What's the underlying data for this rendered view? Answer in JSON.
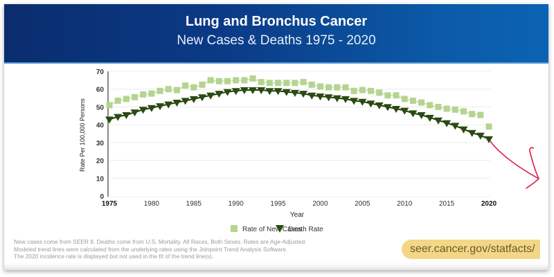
{
  "header": {
    "title": "Lung and Bronchus Cancer",
    "subtitle": "New Cases & Deaths 1975 - 2020"
  },
  "footnote": {
    "line1": "New cases come from SEER 8. Deaths come from U.S. Mortality. All Races, Both Sexes. Rates are Age-Adjusted.",
    "line2": "Modeled trend lines were calculated from the underlying rates using the Joinpoint Trend Analysis Software.",
    "line3": "The 2020 incidence rate is displayed but not used in the fit of the trend line(s)."
  },
  "link": {
    "url_text": "seer.cancer.gov/statfacts/"
  },
  "colors": {
    "header_dark": "#0a2d6e",
    "header_light": "#0b63b3",
    "new_cases": "#b5d48f",
    "new_cases_line": "#c9dfae",
    "death_rate": "#2b4a10",
    "death_line": "#1f3a0c",
    "annotation_arrow": "#e0204a",
    "url_pill": "#f3d786"
  },
  "chart_data": {
    "type": "line",
    "title": "Lung and Bronchus Cancer",
    "subtitle": "New Cases & Deaths 1975 - 2020",
    "xlabel": "Year",
    "ylabel": "Rate Per 100,000 Persons",
    "ylim": [
      0,
      70
    ],
    "yticks": [
      0,
      10,
      20,
      30,
      40,
      50,
      60,
      70
    ],
    "xlim": [
      1975,
      2020
    ],
    "xticks": [
      1975,
      1980,
      1985,
      1990,
      1995,
      2000,
      2005,
      2010,
      2015,
      2020
    ],
    "grid": "horizontal",
    "legend_position": "bottom",
    "x": [
      1975,
      1976,
      1977,
      1978,
      1979,
      1980,
      1981,
      1982,
      1983,
      1984,
      1985,
      1986,
      1987,
      1988,
      1989,
      1990,
      1991,
      1992,
      1993,
      1994,
      1995,
      1996,
      1997,
      1998,
      1999,
      2000,
      2001,
      2002,
      2003,
      2004,
      2005,
      2006,
      2007,
      2008,
      2009,
      2010,
      2011,
      2012,
      2013,
      2014,
      2015,
      2016,
      2017,
      2018,
      2019,
      2020
    ],
    "series": [
      {
        "name": "Rate of New Cases",
        "marker": "square",
        "values": [
          51.0,
          53.5,
          54.5,
          55.5,
          57.0,
          57.5,
          59.0,
          60.0,
          59.5,
          62.0,
          61.0,
          62.5,
          65.0,
          64.5,
          64.5,
          65.0,
          65.0,
          66.0,
          64.0,
          63.5,
          63.5,
          63.5,
          63.5,
          64.0,
          62.5,
          61.5,
          61.0,
          61.0,
          61.0,
          59.0,
          59.5,
          59.0,
          58.0,
          56.5,
          56.5,
          54.5,
          53.5,
          52.5,
          51.0,
          50.0,
          49.0,
          48.5,
          47.5,
          46.0,
          45.5,
          39.0
        ]
      },
      {
        "name": "Death Rate",
        "marker": "triangle-down",
        "values": [
          43.0,
          44.5,
          45.5,
          47.0,
          48.5,
          49.5,
          50.5,
          51.5,
          52.5,
          53.5,
          54.5,
          55.5,
          56.5,
          57.5,
          58.5,
          59.0,
          59.5,
          59.5,
          59.5,
          59.0,
          59.0,
          58.5,
          58.0,
          57.5,
          56.5,
          56.0,
          55.5,
          55.0,
          54.5,
          53.5,
          53.0,
          52.0,
          51.0,
          50.0,
          49.0,
          48.0,
          46.5,
          45.5,
          44.0,
          42.5,
          41.0,
          39.5,
          37.5,
          35.5,
          34.0,
          32.0
        ]
      }
    ],
    "annotations": [
      "hand-drawn red arrow pointing down-right from 2020 death rate point"
    ]
  },
  "legend": {
    "items": [
      {
        "label": "Rate of New Cases",
        "icon": "square-marker"
      },
      {
        "label": "Death Rate",
        "icon": "triangle-down-marker"
      }
    ]
  },
  "axes": {
    "xlabel": "Year",
    "ylabel": "Rate Per 100,000 Persons"
  }
}
